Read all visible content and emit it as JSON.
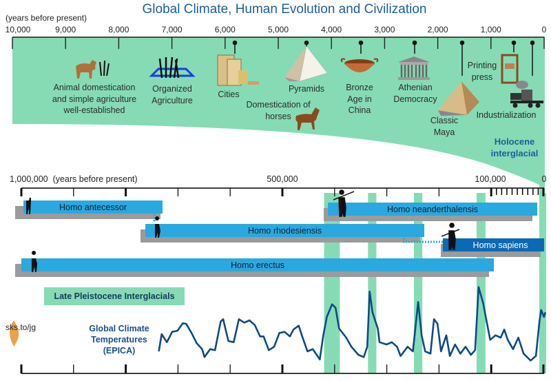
{
  "title": "Global Climate, Human Evolution and Civilization",
  "colors": {
    "interglacial_green": "#86dbb5",
    "species_blue": "#2aa8e0",
    "sapiens_blue": "#0a6ab5",
    "shadow_gray": "#9b9b9b",
    "temperature_line": "#0d4a86",
    "title_blue": "#1b5e9c"
  },
  "civilization_timeline": {
    "unit_label": "(years before present)",
    "tick_labels": [
      "10,000",
      "9,000",
      "8,000",
      "7,000",
      "6,000",
      "5,000",
      "4,000",
      "3,000",
      "2,000",
      "1,000",
      "0"
    ],
    "events": [
      {
        "lines": [
          "Animal domestication",
          "and simple agriculture",
          "well-established"
        ],
        "icon": "dog-and-plant-icon"
      },
      {
        "lines": [
          "Organized",
          "Agriculture"
        ],
        "icon": "wheat-field-icon"
      },
      {
        "lines": [
          "Cities"
        ],
        "icon": "city-buildings-icon"
      },
      {
        "lines": [
          "Pyramids"
        ],
        "icon": "pyramid-icon"
      },
      {
        "lines": [
          "Domestication of",
          "horses"
        ],
        "icon": "horse-icon"
      },
      {
        "lines": [
          "Bronze",
          "Age in",
          "China"
        ],
        "icon": "bronze-bowl-icon"
      },
      {
        "lines": [
          "Athenian",
          "Democracy"
        ],
        "icon": "greek-temple-icon"
      },
      {
        "lines": [
          "Printing",
          "press"
        ],
        "icon": "printing-press-icon"
      },
      {
        "lines": [
          "Classic",
          "Maya"
        ],
        "icon": "maya-pyramid-icon"
      },
      {
        "lines": [
          "Industrialization"
        ],
        "icon": "steam-train-icon"
      }
    ],
    "holocene_label": [
      "Holocene",
      "interglacial"
    ]
  },
  "evolution_timeline": {
    "unit_label": "(years before present)",
    "tick_labels": {
      "start": "1,000,000",
      "mid": "500,000",
      "late": "100,000",
      "end": "0"
    },
    "species": [
      {
        "name": "Homo antecessor"
      },
      {
        "name": "Homo neanderthalensis"
      },
      {
        "name": "Homo rhodesiensis"
      },
      {
        "name": "Homo sapiens"
      },
      {
        "name": "Homo erectus"
      }
    ],
    "interglacials_label": "Late Pleistocene Interglacials",
    "interglacial_periods_years_bp": [
      [
        420000,
        390000
      ],
      [
        336000,
        320000
      ],
      [
        248000,
        232000
      ],
      [
        128000,
        111000
      ],
      [
        8000,
        0
      ]
    ]
  },
  "climate": {
    "label": [
      "Global Climate",
      "Temperatures",
      "(EPICA)"
    ]
  },
  "credit": "sks.to/jg"
}
